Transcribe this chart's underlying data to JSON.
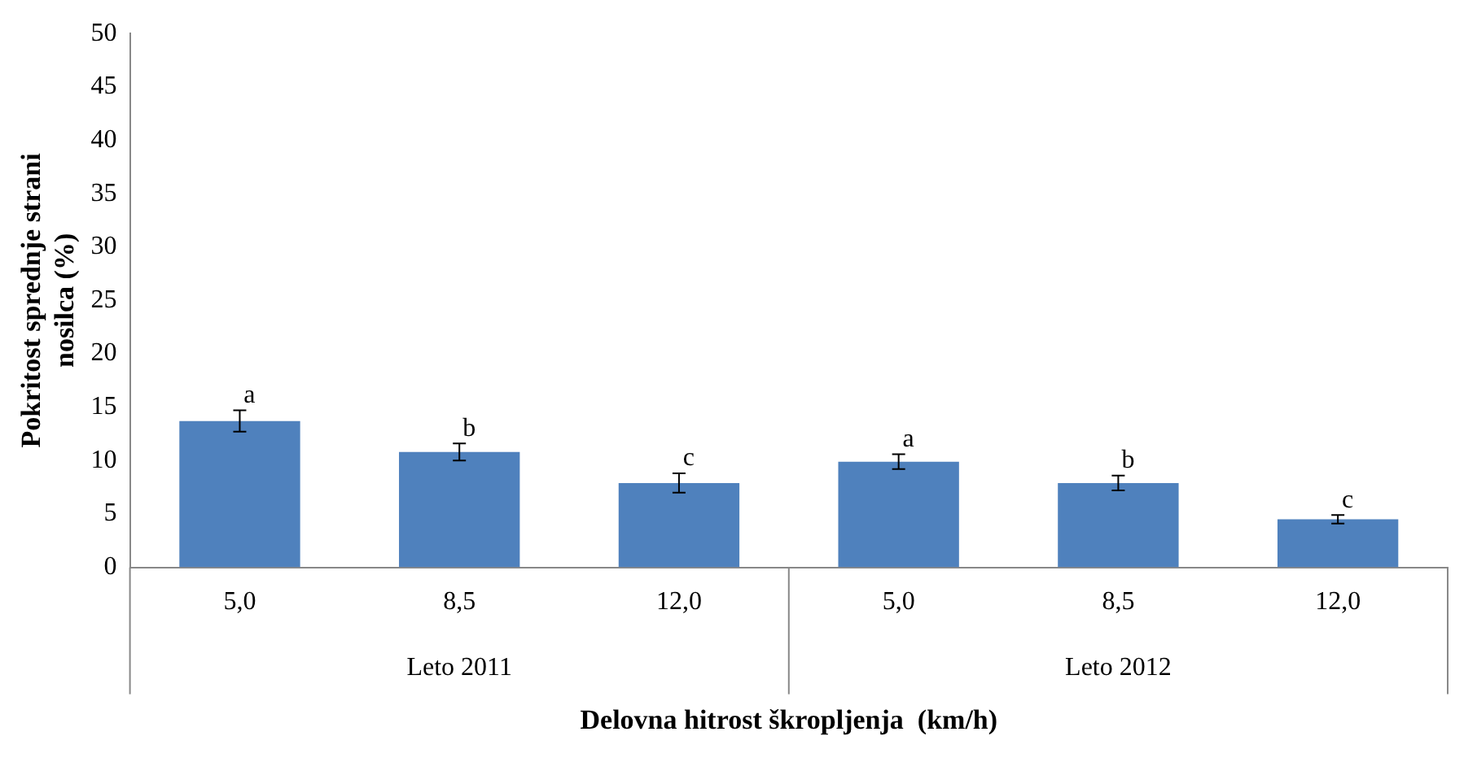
{
  "chart_data": {
    "type": "bar",
    "ylabel": "Pokritost sprednje strani nosilca (%)",
    "xlabel": "Delovna hitrost škropljenja  (km/h)",
    "categories": [
      "5,0",
      "8,5",
      "12,0",
      "5,0",
      "8,5",
      "12,0"
    ],
    "values": [
      13.7,
      10.8,
      7.9,
      9.9,
      7.9,
      4.5
    ],
    "errors": [
      1.0,
      0.8,
      0.9,
      0.7,
      0.7,
      0.4
    ],
    "value_labels": [
      "a",
      "b",
      "c",
      "a",
      "b",
      "c"
    ],
    "color": "#4f81bd",
    "annotations": [
      "Leto 2011",
      "Leto 2012"
    ],
    "ylim": [
      0,
      50
    ],
    "yticks": [
      0,
      5,
      10,
      15,
      20,
      25,
      30,
      35,
      40,
      45,
      50
    ],
    "grid": false,
    "legend": false
  }
}
